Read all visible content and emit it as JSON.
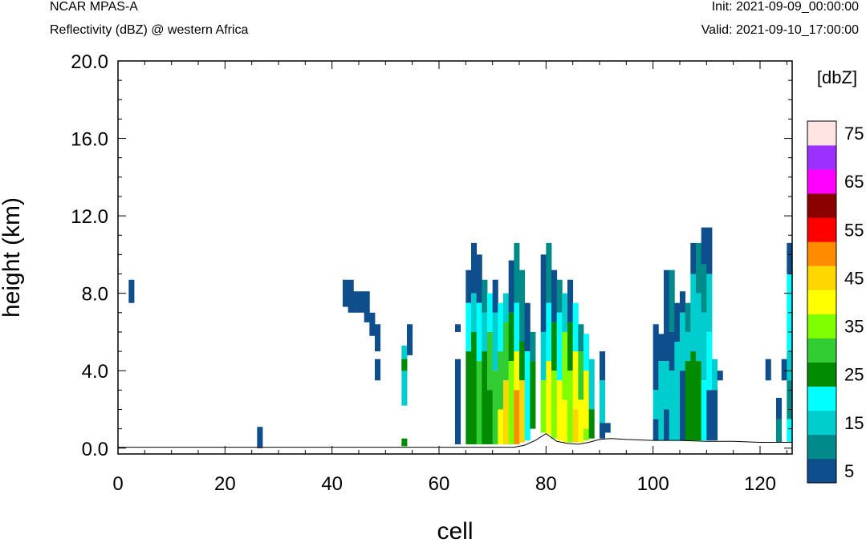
{
  "titles": {
    "model": "NCAR MPAS-A",
    "field": "Reflectivity (dBZ) @ western Africa",
    "init": "Init: 2021-09-09_00:00:00",
    "valid": "Valid: 2021-09-10_17:00:00"
  },
  "chart_data": {
    "type": "heatmap",
    "xlabel": "cell",
    "ylabel": "height (km)",
    "xlim": [
      0,
      126
    ],
    "ylim": [
      -0.3,
      20.0
    ],
    "xticks": [
      0,
      20,
      40,
      60,
      80,
      100,
      120
    ],
    "yticks": [
      0.0,
      4.0,
      8.0,
      12.0,
      16.0,
      20.0
    ],
    "ytick_labels": [
      "0.0",
      "4.0",
      "8.0",
      "12.0",
      "16.0",
      "20.0"
    ],
    "grid": false,
    "colorbar": {
      "title": "[dbZ]",
      "levels": [
        5,
        10,
        15,
        20,
        25,
        30,
        35,
        40,
        45,
        50,
        55,
        60,
        65,
        70,
        75
      ],
      "labels": [
        5,
        15,
        25,
        35,
        45,
        55,
        65,
        75
      ],
      "colors": [
        "#0f4e8c",
        "#008b8b",
        "#00cdcd",
        "#00ffff",
        "#008b00",
        "#32cd32",
        "#7fff00",
        "#ffff00",
        "#ffd700",
        "#ff8c00",
        "#ff0000",
        "#8b0000",
        "#ff00ff",
        "#9b30ff",
        "#ffe4e1"
      ]
    },
    "terrain": [
      [
        0,
        0.05
      ],
      [
        74,
        0.05
      ],
      [
        76,
        0.15
      ],
      [
        78,
        0.4
      ],
      [
        80,
        0.75
      ],
      [
        81,
        0.55
      ],
      [
        82,
        0.35
      ],
      [
        84,
        0.25
      ],
      [
        86,
        0.2
      ],
      [
        88,
        0.3
      ],
      [
        90,
        0.45
      ],
      [
        92,
        0.5
      ],
      [
        95,
        0.45
      ],
      [
        100,
        0.4
      ],
      [
        105,
        0.4
      ],
      [
        110,
        0.35
      ],
      [
        115,
        0.35
      ],
      [
        120,
        0.3
      ],
      [
        126,
        0.3
      ]
    ],
    "columns": [
      {
        "x": 2,
        "cells": [
          [
            7.5,
            8.7,
            5
          ]
        ]
      },
      {
        "x": 26,
        "cells": [
          [
            0.0,
            1.1,
            5
          ]
        ]
      },
      {
        "x": 42,
        "cells": [
          [
            7.3,
            8.7,
            5
          ]
        ]
      },
      {
        "x": 43,
        "cells": [
          [
            7.0,
            8.7,
            5
          ]
        ]
      },
      {
        "x": 44,
        "cells": [
          [
            7.0,
            8.1,
            5
          ]
        ]
      },
      {
        "x": 45,
        "cells": [
          [
            7.0,
            8.1,
            5
          ]
        ]
      },
      {
        "x": 46,
        "cells": [
          [
            6.5,
            8.1,
            5
          ]
        ]
      },
      {
        "x": 47,
        "cells": [
          [
            5.8,
            7.0,
            5
          ]
        ]
      },
      {
        "x": 48,
        "cells": [
          [
            5.0,
            6.4,
            5
          ],
          [
            3.5,
            4.6,
            5
          ]
        ]
      },
      {
        "x": 53,
        "cells": [
          [
            2.2,
            5.3,
            15
          ],
          [
            4.0,
            4.6,
            25
          ],
          [
            0.1,
            0.5,
            25
          ]
        ]
      },
      {
        "x": 54,
        "cells": [
          [
            4.8,
            6.4,
            5
          ]
        ]
      },
      {
        "x": 63,
        "cells": [
          [
            6.0,
            6.4,
            5
          ],
          [
            0.2,
            4.6,
            5
          ]
        ]
      },
      {
        "x": 65,
        "cells": [
          [
            7.5,
            9.2,
            5
          ],
          [
            5.0,
            7.5,
            20
          ],
          [
            0.2,
            5.0,
            25
          ]
        ]
      },
      {
        "x": 66,
        "cells": [
          [
            8.0,
            10.6,
            5
          ],
          [
            6.0,
            8.0,
            15
          ],
          [
            0.2,
            6.0,
            25
          ]
        ]
      },
      {
        "x": 67,
        "cells": [
          [
            7.5,
            10.0,
            5
          ],
          [
            4.5,
            7.5,
            20
          ],
          [
            0.2,
            4.5,
            30
          ]
        ]
      },
      {
        "x": 68,
        "cells": [
          [
            7.0,
            8.7,
            10
          ],
          [
            5.0,
            7.0,
            15
          ],
          [
            0.2,
            5.0,
            25
          ]
        ]
      },
      {
        "x": 69,
        "cells": [
          [
            6.0,
            8.0,
            20
          ],
          [
            3.0,
            6.0,
            30
          ],
          [
            0.2,
            3.0,
            25
          ]
        ]
      },
      {
        "x": 70,
        "cells": [
          [
            7.0,
            8.7,
            5
          ],
          [
            4.0,
            7.0,
            15
          ],
          [
            0.2,
            4.0,
            30
          ]
        ]
      },
      {
        "x": 71,
        "cells": [
          [
            5.0,
            7.5,
            20
          ],
          [
            2.0,
            5.0,
            30
          ],
          [
            0.2,
            2.0,
            40
          ]
        ]
      },
      {
        "x": 72,
        "cells": [
          [
            6.5,
            8.0,
            15
          ],
          [
            3.5,
            6.5,
            30
          ],
          [
            0.2,
            3.5,
            45
          ]
        ]
      },
      {
        "x": 73,
        "cells": [
          [
            7.0,
            9.7,
            5
          ],
          [
            4.5,
            7.0,
            25
          ],
          [
            0.2,
            4.5,
            35
          ]
        ]
      },
      {
        "x": 74,
        "cells": [
          [
            7.5,
            10.6,
            10
          ],
          [
            5.0,
            7.5,
            20
          ],
          [
            3.0,
            5.0,
            40
          ],
          [
            0.2,
            3.0,
            50
          ]
        ]
      },
      {
        "x": 75,
        "cells": [
          [
            5.5,
            9.2,
            10
          ],
          [
            3.5,
            5.5,
            25
          ],
          [
            0.3,
            3.5,
            45
          ]
        ]
      },
      {
        "x": 76,
        "cells": [
          [
            5.0,
            7.5,
            5
          ],
          [
            0.4,
            5.0,
            20
          ]
        ]
      },
      {
        "x": 77,
        "cells": [
          [
            4.5,
            6.0,
            10
          ],
          [
            1.0,
            4.5,
            25
          ]
        ]
      },
      {
        "x": 79,
        "cells": [
          [
            6.0,
            10.0,
            5
          ],
          [
            3.5,
            6.0,
            15
          ],
          [
            0.8,
            3.5,
            35
          ]
        ]
      },
      {
        "x": 80,
        "cells": [
          [
            7.5,
            10.6,
            10
          ],
          [
            4.5,
            7.5,
            20
          ],
          [
            0.7,
            4.5,
            40
          ]
        ]
      },
      {
        "x": 81,
        "cells": [
          [
            6.5,
            9.2,
            5
          ],
          [
            4.0,
            6.5,
            25
          ],
          [
            0.5,
            4.0,
            35
          ]
        ]
      },
      {
        "x": 82,
        "cells": [
          [
            7.0,
            8.7,
            10
          ],
          [
            3.5,
            7.0,
            20
          ],
          [
            0.4,
            3.5,
            40
          ]
        ]
      },
      {
        "x": 83,
        "cells": [
          [
            6.0,
            8.0,
            15
          ],
          [
            2.5,
            6.0,
            35
          ],
          [
            0.3,
            2.5,
            40
          ]
        ]
      },
      {
        "x": 84,
        "cells": [
          [
            6.5,
            8.7,
            5
          ],
          [
            4.0,
            6.5,
            25
          ],
          [
            0.3,
            4.0,
            35
          ]
        ]
      },
      {
        "x": 85,
        "cells": [
          [
            5.0,
            7.5,
            20
          ],
          [
            2.0,
            5.0,
            40
          ],
          [
            0.3,
            2.0,
            45
          ]
        ]
      },
      {
        "x": 86,
        "cells": [
          [
            5.0,
            6.4,
            10
          ],
          [
            2.5,
            5.0,
            30
          ],
          [
            0.3,
            2.5,
            40
          ]
        ]
      },
      {
        "x": 87,
        "cells": [
          [
            4.0,
            5.9,
            20
          ],
          [
            1.0,
            4.0,
            40
          ],
          [
            0.4,
            1.0,
            35
          ]
        ]
      },
      {
        "x": 88,
        "cells": [
          [
            2.0,
            4.6,
            15
          ],
          [
            0.5,
            2.0,
            25
          ]
        ]
      },
      {
        "x": 90,
        "cells": [
          [
            3.5,
            5.0,
            5
          ],
          [
            0.8,
            3.5,
            15
          ],
          [
            0.5,
            1.3,
            5
          ]
        ]
      },
      {
        "x": 91,
        "cells": [
          [
            0.8,
            1.3,
            5
          ]
        ]
      },
      {
        "x": 100,
        "cells": [
          [
            3.0,
            6.4,
            5
          ],
          [
            1.5,
            3.0,
            15
          ],
          [
            0.4,
            1.5,
            5
          ]
        ]
      },
      {
        "x": 101,
        "cells": [
          [
            4.5,
            5.9,
            5
          ],
          [
            0.4,
            4.5,
            15
          ]
        ]
      },
      {
        "x": 102,
        "cells": [
          [
            4.5,
            9.2,
            5
          ],
          [
            2.0,
            4.5,
            15
          ],
          [
            0.4,
            2.0,
            5
          ]
        ]
      },
      {
        "x": 103,
        "cells": [
          [
            6.0,
            9.2,
            10
          ],
          [
            4.0,
            6.0,
            5
          ],
          [
            0.4,
            4.0,
            15
          ]
        ]
      },
      {
        "x": 104,
        "cells": [
          [
            5.5,
            7.5,
            5
          ],
          [
            0.4,
            5.5,
            15
          ]
        ]
      },
      {
        "x": 105,
        "cells": [
          [
            7.0,
            8.1,
            5
          ],
          [
            4.0,
            7.0,
            15
          ],
          [
            0.4,
            4.0,
            5
          ]
        ]
      },
      {
        "x": 106,
        "cells": [
          [
            6.0,
            7.5,
            10
          ],
          [
            4.5,
            6.0,
            15
          ],
          [
            0.4,
            4.5,
            25
          ]
        ]
      },
      {
        "x": 107,
        "cells": [
          [
            9.0,
            10.6,
            5
          ],
          [
            5.0,
            9.0,
            15
          ],
          [
            0.4,
            5.0,
            25
          ]
        ]
      },
      {
        "x": 108,
        "cells": [
          [
            8.0,
            10.6,
            10
          ],
          [
            4.5,
            8.0,
            15
          ],
          [
            0.4,
            4.5,
            25
          ]
        ]
      },
      {
        "x": 109,
        "cells": [
          [
            9.5,
            11.4,
            5
          ],
          [
            7.0,
            9.5,
            10
          ],
          [
            3.5,
            7.0,
            15
          ],
          [
            0.4,
            3.5,
            20
          ]
        ]
      },
      {
        "x": 110,
        "cells": [
          [
            9.0,
            11.4,
            5
          ],
          [
            6.0,
            9.0,
            15
          ],
          [
            3.0,
            6.0,
            20
          ],
          [
            0.4,
            3.0,
            5
          ]
        ]
      },
      {
        "x": 111,
        "cells": [
          [
            3.0,
            4.6,
            15
          ],
          [
            0.4,
            3.0,
            5
          ]
        ]
      },
      {
        "x": 112,
        "cells": [
          [
            3.5,
            4.0,
            5
          ]
        ]
      },
      {
        "x": 121,
        "cells": [
          [
            3.5,
            4.6,
            5
          ]
        ]
      },
      {
        "x": 123,
        "cells": [
          [
            1.5,
            2.6,
            5
          ],
          [
            0.3,
            1.5,
            10
          ]
        ]
      },
      {
        "x": 124,
        "cells": [
          [
            3.5,
            4.6,
            5
          ]
        ]
      },
      {
        "x": 125,
        "cells": [
          [
            9.0,
            10.6,
            5
          ],
          [
            5.0,
            9.0,
            20
          ],
          [
            3.5,
            5.0,
            15
          ],
          [
            1.5,
            3.5,
            10
          ],
          [
            0.3,
            1.5,
            20
          ]
        ]
      }
    ]
  }
}
